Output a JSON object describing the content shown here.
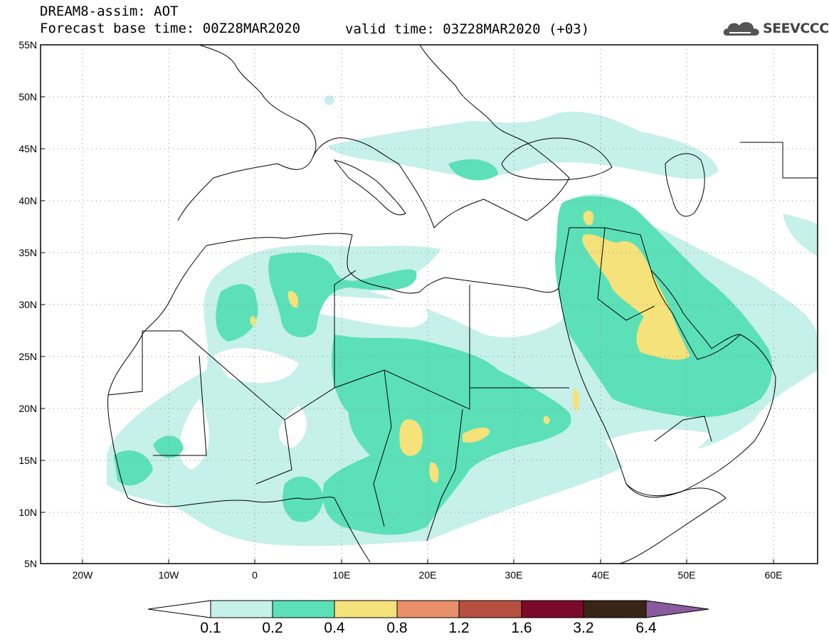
{
  "header": {
    "title": "DREAM8-assim: AOT",
    "base_time": "Forecast base time: 00Z28MAR2020",
    "valid_time": "valid time: 03Z28MAR2020 (+03)"
  },
  "logo": {
    "text": "SEEVCCC",
    "icon": "cloud-icon"
  },
  "map": {
    "lat_labels": [
      "55N",
      "50N",
      "45N",
      "40N",
      "35N",
      "30N",
      "25N",
      "20N",
      "15N",
      "10N",
      "5N"
    ],
    "lon_labels": [
      "20W",
      "10W",
      "0",
      "10E",
      "20E",
      "30E",
      "40E",
      "50E",
      "60E"
    ]
  },
  "colorbar": {
    "levels": [
      "0.1",
      "0.2",
      "0.4",
      "0.8",
      "1.2",
      "1.6",
      "3.2",
      "6.4"
    ],
    "colors": [
      "#ffffff",
      "#c6f0ea",
      "#5ce0b8",
      "#f5e27a",
      "#e9906a",
      "#b54f40",
      "#7b0a2a",
      "#3a2416",
      "#8a5a9e"
    ]
  },
  "palette": {
    "aot_0_1": "#c6f0ea",
    "aot_0_2": "#5ce0b8",
    "aot_0_4": "#f5e27a"
  }
}
